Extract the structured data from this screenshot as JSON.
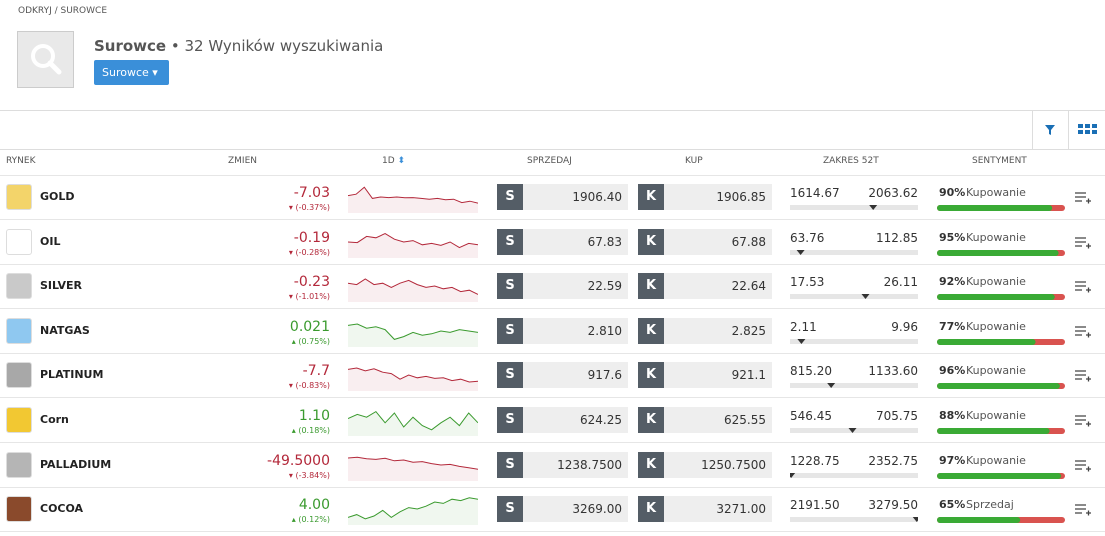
{
  "breadcrumb": "ODKRYJ / SUROWCE",
  "header": {
    "title": "Surowce",
    "subtitle": "• 32 Wyników wyszukiwania",
    "button": "Surowce"
  },
  "table": {
    "columns": [
      "RYNEK",
      "ZMIEN",
      "1D",
      "SPRZEDAJ",
      "KUP",
      "ZAKRES 52T",
      "SENTYMENT"
    ],
    "sell_button": "S",
    "buy_button": "K",
    "positive_color": "#3a9a2e",
    "negative_color": "#b3283a",
    "rows": [
      {
        "name": "GOLD",
        "icon_color": "#f3d46a",
        "change": "-7.03",
        "change_pct": "(-0.37%)",
        "sparkline": [
          55,
          60,
          85,
          45,
          50,
          48,
          50,
          47,
          48,
          45,
          42,
          45,
          40,
          42,
          30,
          35,
          28
        ],
        "sell": "1906.40",
        "buy": "1906.85",
        "range_low": "1614.67",
        "range_high": "2063.62",
        "sentiment": "90%",
        "sentiment_label": "Kupowanie"
      },
      {
        "name": "OIL",
        "icon_color": "#ffffff",
        "change": "-0.19",
        "change_pct": "(-0.28%)",
        "sparkline": [
          50,
          48,
          70,
          65,
          80,
          60,
          50,
          55,
          40,
          45,
          38,
          50,
          30,
          45,
          40
        ],
        "sell": "67.83",
        "buy": "67.88",
        "range_low": "63.76",
        "range_high": "112.85",
        "sentiment": "95%",
        "sentiment_label": "Kupowanie"
      },
      {
        "name": "SILVER",
        "icon_color": "#c9c9c9",
        "change": "-0.23",
        "change_pct": "(-1.01%)",
        "sparkline": [
          60,
          55,
          75,
          55,
          60,
          45,
          60,
          70,
          55,
          45,
          50,
          40,
          45,
          30,
          35,
          20
        ],
        "sell": "22.59",
        "buy": "22.64",
        "range_low": "17.53",
        "range_high": "26.11",
        "sentiment": "92%",
        "sentiment_label": "Kupowanie"
      },
      {
        "name": "NATGAS",
        "icon_color": "#8fc8f0",
        "change": "0.021",
        "change_pct": "(0.75%)",
        "sparkline": [
          70,
          75,
          60,
          65,
          55,
          20,
          30,
          45,
          35,
          40,
          50,
          45,
          55,
          50,
          45
        ],
        "sell": "2.810",
        "buy": "2.825",
        "range_low": "2.11",
        "range_high": "9.96",
        "sentiment": "77%",
        "sentiment_label": "Kupowanie"
      },
      {
        "name": "PLATINUM",
        "icon_color": "#a8a8a8",
        "change": "-7.7",
        "change_pct": "(-0.83%)",
        "sparkline": [
          70,
          75,
          65,
          72,
          60,
          55,
          35,
          50,
          40,
          45,
          38,
          40,
          30,
          35,
          25,
          28
        ],
        "sell": "917.6",
        "buy": "921.1",
        "range_low": "815.20",
        "range_high": "1133.60",
        "sentiment": "96%",
        "sentiment_label": "Kupowanie"
      },
      {
        "name": "Corn",
        "icon_color": "#f2c832",
        "change": "1.10",
        "change_pct": "(0.18%)",
        "sparkline": [
          55,
          70,
          60,
          80,
          40,
          75,
          25,
          60,
          30,
          15,
          40,
          60,
          30,
          75,
          40
        ],
        "sell": "624.25",
        "buy": "625.55",
        "range_low": "546.45",
        "range_high": "705.75",
        "sentiment": "88%",
        "sentiment_label": "Kupowanie"
      },
      {
        "name": "PALLADIUM",
        "icon_color": "#b5b5b5",
        "change": "-49.5000",
        "change_pct": "(-3.84%)",
        "sparkline": [
          75,
          78,
          72,
          70,
          74,
          65,
          68,
          60,
          62,
          55,
          50,
          52,
          45,
          40,
          35
        ],
        "sell": "1238.7500",
        "buy": "1250.7500",
        "range_low": "1228.75",
        "range_high": "2352.75",
        "sentiment": "97%",
        "sentiment_label": "Kupowanie"
      },
      {
        "name": "COCOA",
        "icon_color": "#8a4a2c",
        "change": "4.00",
        "change_pct": "(0.12%)",
        "sparkline": [
          20,
          30,
          15,
          25,
          45,
          20,
          40,
          55,
          50,
          60,
          75,
          70,
          85,
          80,
          90,
          85
        ],
        "sell": "3269.00",
        "buy": "3271.00",
        "range_low": "2191.50",
        "range_high": "3279.50",
        "sentiment": "65%",
        "sentiment_label": "Sprzedaj"
      }
    ]
  }
}
